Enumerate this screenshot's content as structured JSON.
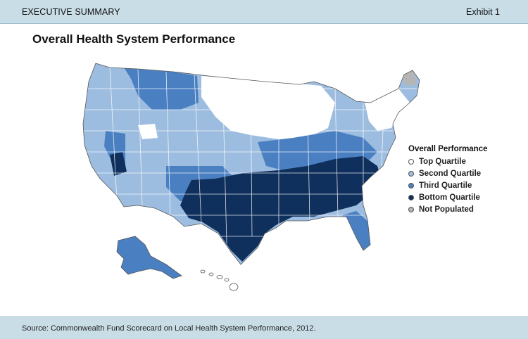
{
  "header": {
    "section": "EXECUTIVE SUMMARY",
    "exhibit": "Exhibit 1"
  },
  "title": "Overall Health System Performance",
  "legend": {
    "title": "Overall Performance",
    "items": [
      {
        "label": "Top Quartile",
        "color": "#ffffff"
      },
      {
        "label": "Second Quartile",
        "color": "#9dbde0"
      },
      {
        "label": "Third Quartile",
        "color": "#4a80c2"
      },
      {
        "label": "Bottom Quartile",
        "color": "#0f2f5c"
      },
      {
        "label": "Not Populated",
        "color": "#b5b5b5"
      }
    ]
  },
  "footer": {
    "source": "Source: Commonwealth Fund Scorecard on Local Health System Performance, 2012."
  }
}
